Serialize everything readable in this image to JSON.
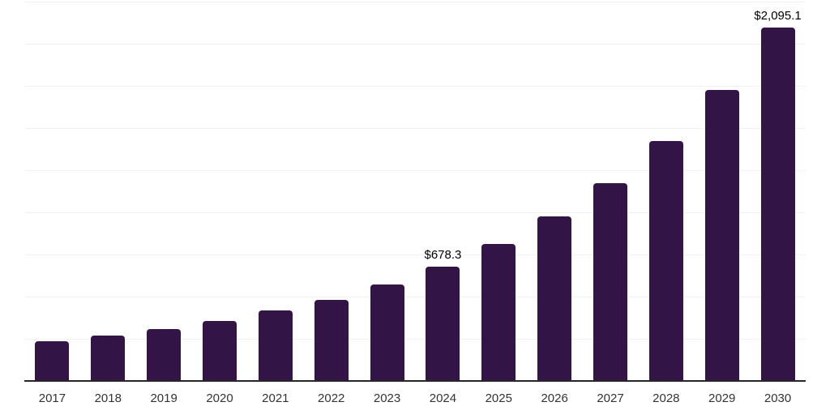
{
  "chart_data": {
    "type": "bar",
    "title": "",
    "xlabel": "",
    "ylabel": "",
    "categories": [
      "2017",
      "2018",
      "2019",
      "2020",
      "2021",
      "2022",
      "2023",
      "2024",
      "2025",
      "2026",
      "2027",
      "2028",
      "2029",
      "2030"
    ],
    "values": [
      236,
      268,
      305,
      356,
      417,
      478,
      571,
      678.3,
      812,
      974,
      1170,
      1421,
      1725,
      2095.1
    ],
    "ylim": [
      0,
      2250
    ],
    "grid_step": 250,
    "grid": true,
    "legend": false,
    "y_tick_labels_visible": false,
    "data_labels": [
      {
        "category": "2024",
        "text": "$678.3"
      },
      {
        "category": "2030",
        "text": "$2,095.1"
      }
    ],
    "colors": {
      "bar": "#331447",
      "gridline": "#f2f2f2",
      "axis_line": "#262626",
      "category_label": "#333333",
      "value_label": "#000000",
      "background": "#ffffff"
    }
  }
}
